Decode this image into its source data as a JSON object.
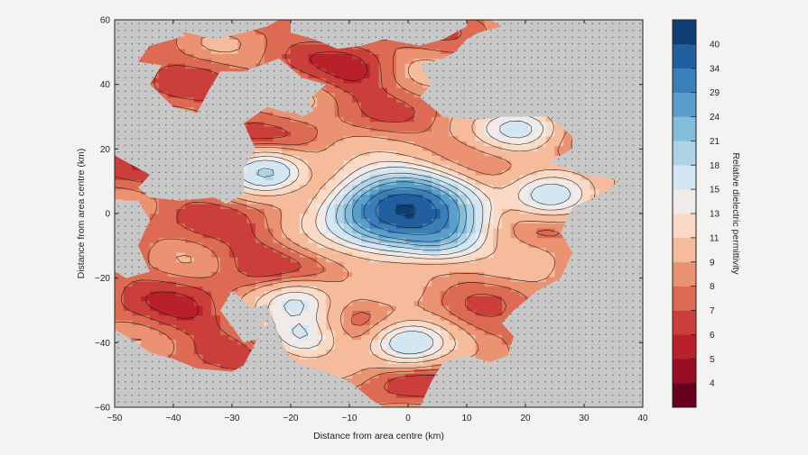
{
  "chart_data": {
    "type": "heatmap",
    "subtype": "filled-contour-map",
    "xlabel": "Distance from area centre (km)",
    "ylabel": "Distance from area centre (km)",
    "xlim": [
      -50,
      40
    ],
    "ylim": [
      -60,
      60
    ],
    "x_ticks": [
      "−50",
      "−40",
      "−30",
      "−20",
      "−10",
      "0",
      "10",
      "20",
      "30",
      "40"
    ],
    "y_ticks": [
      "−60",
      "−40",
      "−20",
      "0",
      "20",
      "40",
      "60"
    ],
    "colorbar": {
      "label": "Relative dielectric permittivity",
      "tick_labels": [
        "4",
        "5",
        "6",
        "7",
        "8",
        "9",
        "11",
        "13",
        "15",
        "18",
        "21",
        "24",
        "29",
        "34",
        "40"
      ],
      "colors": [
        "#67001f",
        "#980e24",
        "#b8202a",
        "#cb3f3a",
        "#dd6b53",
        "#eb9272",
        "#f5bb9b",
        "#fadac5",
        "#f0ebe8",
        "#d4e6f1",
        "#aed2e6",
        "#84bcdb",
        "#5a9fcb",
        "#3a7fb9",
        "#215f9e",
        "#0f3f72"
      ]
    },
    "no_data_fill": "#c8c8c8",
    "no_data_marker": "dots",
    "contour_levels": [
      4,
      5,
      6,
      7,
      8,
      9,
      11,
      13,
      15,
      18,
      21,
      24,
      29,
      34,
      40
    ],
    "features": [
      {
        "kind": "peak",
        "x": -1,
        "y": 1,
        "value": 40
      },
      {
        "kind": "high",
        "x": -24,
        "y": 13,
        "value": 18
      },
      {
        "kind": "high",
        "x": 24,
        "y": 5,
        "value": 16
      },
      {
        "kind": "high",
        "x": 19,
        "y": 26,
        "value": 15
      },
      {
        "kind": "high",
        "x": -19,
        "y": -27,
        "value": 15
      },
      {
        "kind": "high",
        "x": -18,
        "y": -38,
        "value": 15
      },
      {
        "kind": "high",
        "x": 0,
        "y": -40,
        "value": 18
      },
      {
        "kind": "high",
        "x": 6,
        "y": -8,
        "value": 15
      },
      {
        "kind": "low",
        "x": -8,
        "y": 44,
        "value": 6
      },
      {
        "kind": "low",
        "x": -27,
        "y": -13,
        "value": 7
      },
      {
        "kind": "low",
        "x": -36,
        "y": -32,
        "value": 7
      },
      {
        "kind": "low",
        "x": -3,
        "y": -53,
        "value": 7
      },
      {
        "kind": "low",
        "x": 12,
        "y": -38,
        "value": 7
      }
    ]
  }
}
